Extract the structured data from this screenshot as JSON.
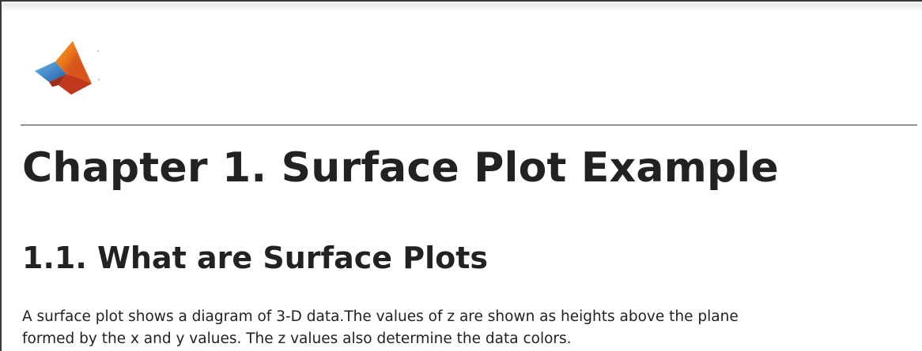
{
  "logo": {
    "icon": "matlab-membrane-logo-icon"
  },
  "chapter": {
    "title": "Chapter 1. Surface Plot Example"
  },
  "section": {
    "title": "1.1. What are Surface Plots"
  },
  "paragraph": {
    "line1": "A surface plot shows a diagram of 3-D data.The values of z are shown as heights above the plane",
    "line2": "formed by the x and y values. The z values also determine the data colors."
  },
  "colors": {
    "text": "#222222",
    "rule": "#333333",
    "logo_orange": "#e8701a",
    "logo_red": "#b8321e",
    "logo_blue": "#2f7fc4"
  }
}
